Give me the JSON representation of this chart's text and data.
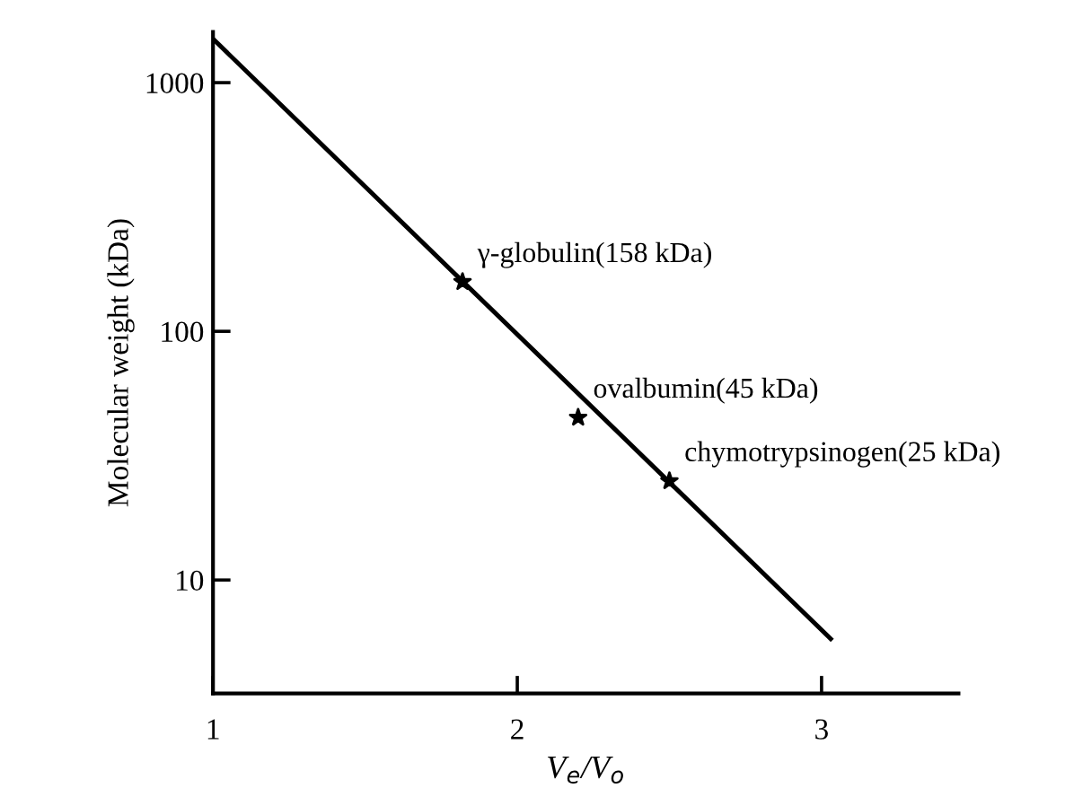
{
  "chart_data": {
    "type": "scatter",
    "xlabel": "V$_{e}$/V$_{o}$",
    "ylabel": "Molecular weight (kDa)",
    "log": "y",
    "xlim": [
      1,
      3.45
    ],
    "ylim": [
      3.5,
      1600
    ],
    "xticks": [
      1,
      2,
      3
    ],
    "yticks": [
      10,
      100,
      1000
    ],
    "grid": false,
    "legend": false,
    "series": [
      {
        "type": "line",
        "color": "#000000",
        "x": [
          1.0,
          3.03
        ],
        "values": [
          1500,
          5.8
        ],
        "marker": "none",
        "line_style": "solid"
      },
      {
        "color": "#000000",
        "x": [
          1.82,
          2.2,
          2.5
        ],
        "values": [
          158,
          45,
          25
        ],
        "marker": "star"
      }
    ],
    "annotations": [
      {
        "text": "γ-globulin(158 kDa)",
        "x": 1.82,
        "y": 158
      },
      {
        "text": "ovalbumin(45 kDa)",
        "x": 2.2,
        "y": 45
      },
      {
        "text": "chymotrypsinogen(25 kDa)",
        "x": 2.5,
        "y": 25
      }
    ]
  }
}
